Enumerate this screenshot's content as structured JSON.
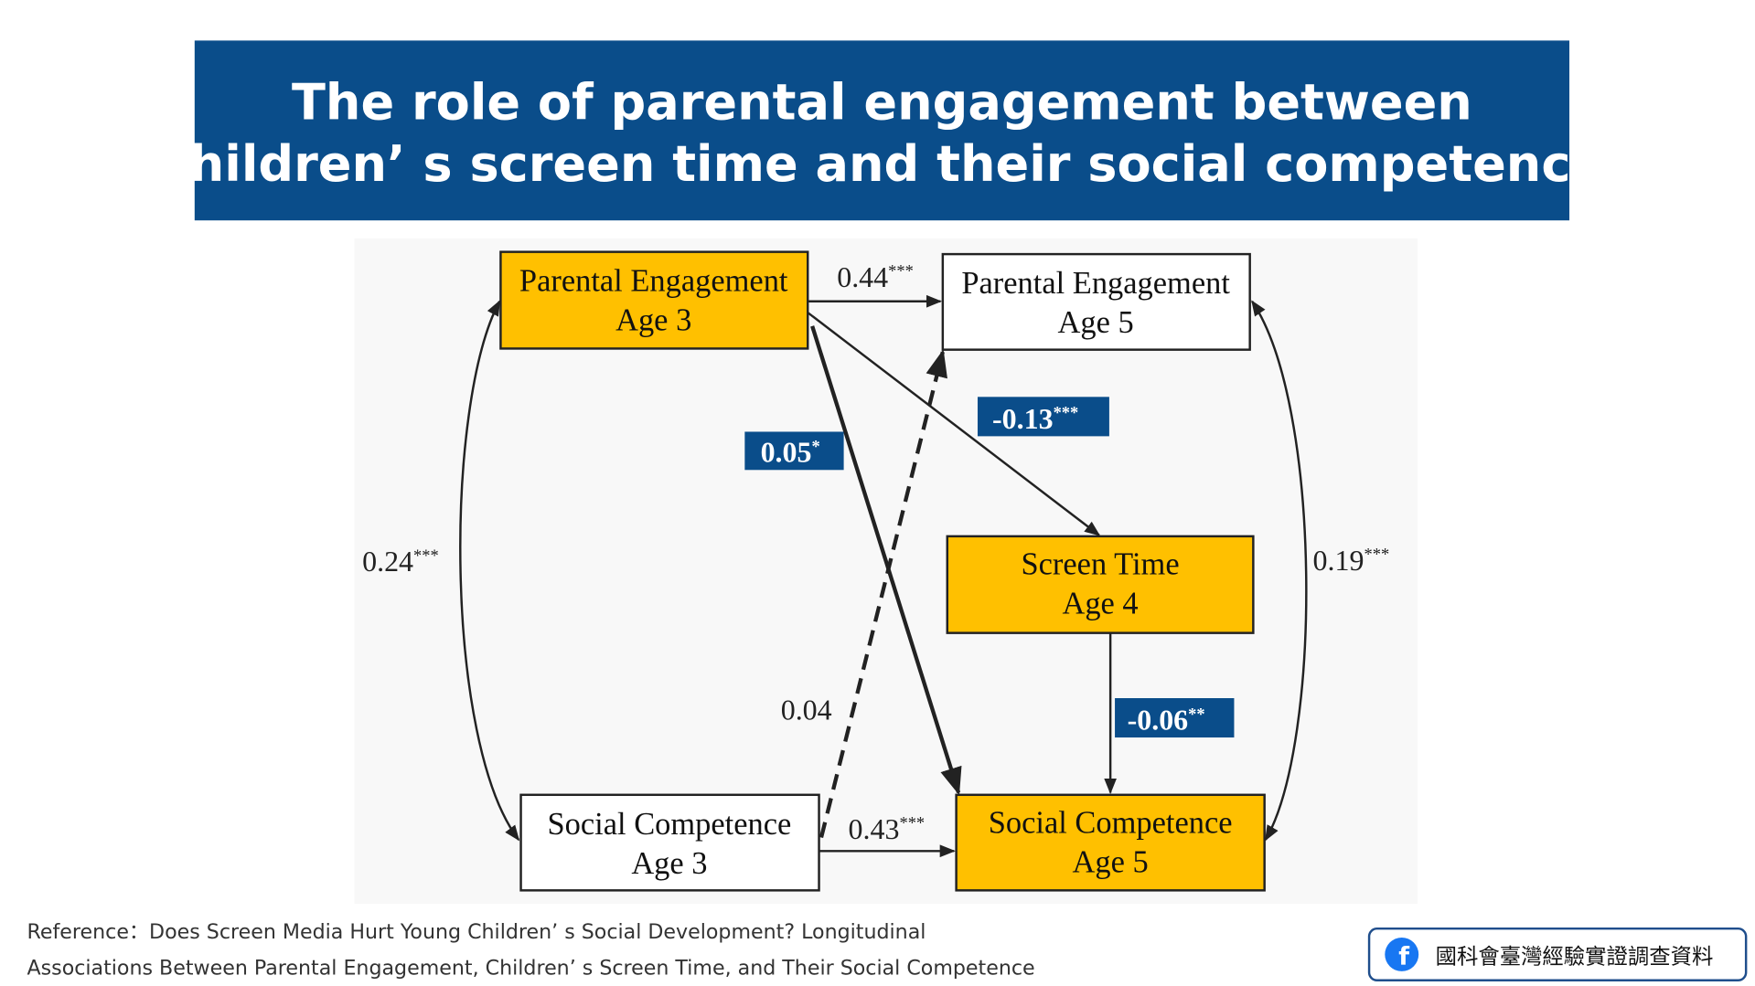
{
  "header": {
    "title_lines": [
      "The role of parental engagement between",
      "children’ s screen time and their social competence"
    ]
  },
  "nodes": [
    {
      "lines": [
        "Parental Engagement",
        "Age 3"
      ]
    },
    {
      "lines": [
        "Parental Engagement",
        "Age 5"
      ]
    },
    {
      "lines": [
        "Screen Time",
        "Age 4"
      ]
    },
    {
      "lines": [
        "Social Competence",
        "Age 3"
      ]
    },
    {
      "lines": [
        "Social Competence",
        "Age 5"
      ]
    }
  ],
  "edges": [
    {
      "value": "0.44",
      "stars": "***"
    },
    {
      "value": "-0.13",
      "stars": "***"
    },
    {
      "value": "0.05",
      "stars": "*"
    },
    {
      "value": "0.04"
    },
    {
      "value": "-0.06",
      "stars": "**"
    },
    {
      "value": "0.43",
      "stars": "***"
    },
    {
      "value": "0.24",
      "stars": "***"
    },
    {
      "value": "0.19",
      "stars": "***"
    }
  ],
  "reference": {
    "lines": [
      "Reference：Does Screen Media Hurt Young Children’ s Social Development? Longitudinal",
      "Associations Between Parental Engagement, Children’ s Screen Time, and Their Social Competence"
    ]
  },
  "badge": {
    "text": "國科會臺灣經驗實證調查資料"
  }
}
